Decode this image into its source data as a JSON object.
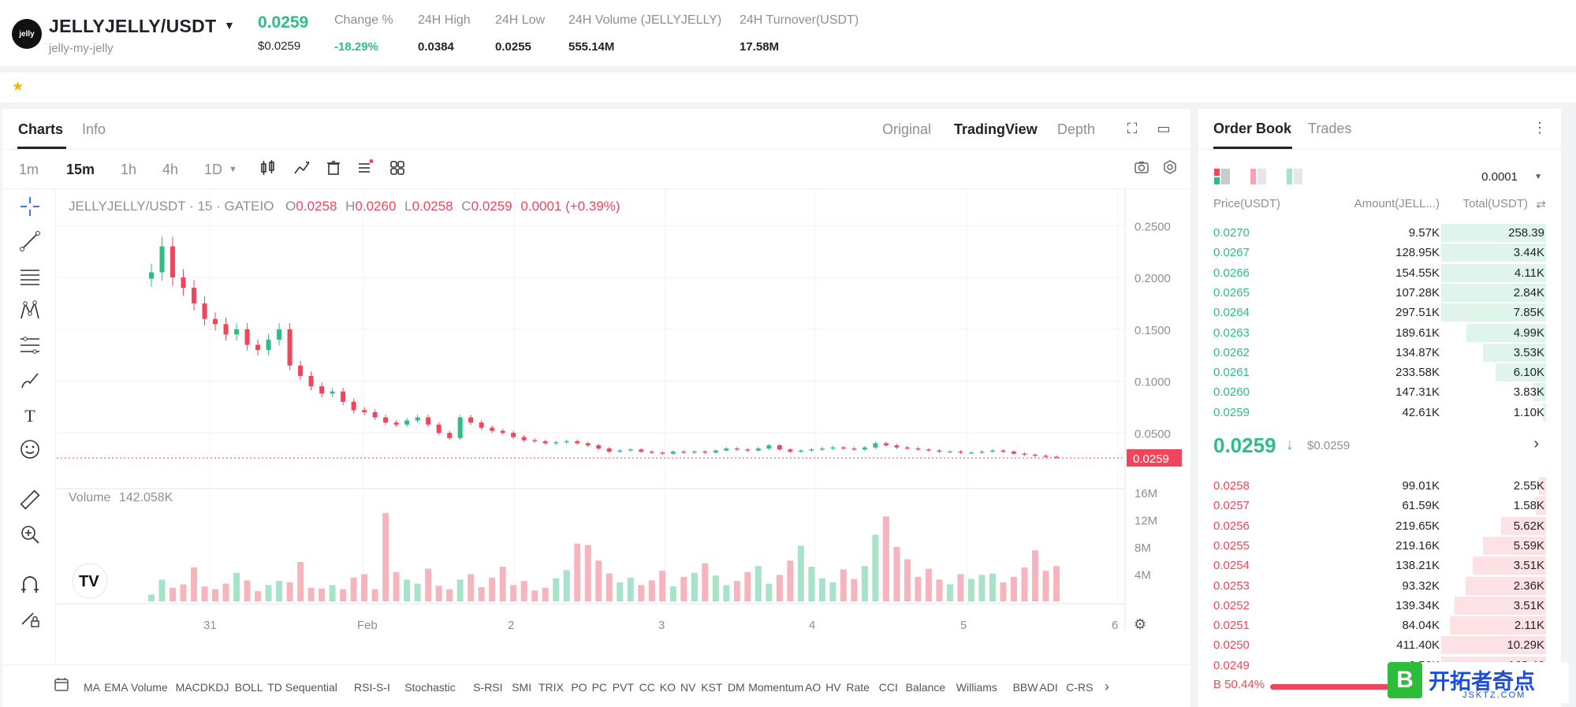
{
  "header": {
    "logo_text": "jelly",
    "pair": "JELLYJELLY/USDT",
    "caret": "▼",
    "subtitle": "jelly-my-jelly",
    "price": "0.0259",
    "price_usd": "$0.0259",
    "stats": [
      {
        "label": "Change %",
        "value": "-18.29%"
      },
      {
        "label": "24H High",
        "value": "0.0384"
      },
      {
        "label": "24H Low",
        "value": "0.0255"
      },
      {
        "label": "24H Volume (JELLYJELLY)",
        "value": "555.14M"
      },
      {
        "label": "24H Turnover(USDT)",
        "value": "17.58M"
      }
    ]
  },
  "favorites": {
    "star_icon": "star-icon"
  },
  "chart_tabs": {
    "charts": "Charts",
    "info": "Info",
    "original": "Original",
    "tradingview": "TradingView",
    "depth": "Depth"
  },
  "intervals": [
    "1m",
    "15m",
    "1h",
    "4h",
    "1D"
  ],
  "intervals_caret": "▼",
  "active_interval": "15m",
  "legend": {
    "symbol": "JELLYJELLY/USDT · 15 · GATEIO",
    "o_label": "O",
    "o": "0.0258",
    "h_label": "H",
    "h": "0.0260",
    "l_label": "L",
    "l": "0.0258",
    "c_label": "C",
    "c": "0.0259",
    "change": "0.0001 (+0.39%)",
    "volume_label": "Volume",
    "volume_value": "142.058K"
  },
  "chart_data": {
    "type": "candlestick",
    "price_axis": [
      "0.2500",
      "0.2000",
      "0.1500",
      "0.1000",
      "0.0500"
    ],
    "price_range": [
      0,
      0.27
    ],
    "current_price_label": "0.0259",
    "volume_axis": [
      "16M",
      "12M",
      "8M",
      "4M"
    ],
    "volume_range": [
      0,
      16000000
    ],
    "x_ticks": [
      "31",
      "Feb",
      "2",
      "3",
      "4",
      "5",
      "6"
    ],
    "series": [
      {
        "name": "",
        "close": [
          0.205,
          0.23,
          0.2,
          0.19,
          0.175,
          0.16,
          0.155,
          0.145,
          0.15,
          0.135,
          0.13,
          0.14,
          0.15,
          0.115,
          0.105,
          0.095,
          0.088,
          0.09,
          0.08,
          0.072,
          0.07,
          0.065,
          0.06,
          0.058,
          0.062,
          0.065,
          0.058,
          0.05,
          0.045,
          0.065,
          0.06,
          0.055,
          0.052,
          0.05,
          0.046,
          0.043,
          0.042,
          0.04,
          0.041,
          0.042,
          0.04,
          0.038,
          0.035,
          0.032,
          0.033,
          0.034,
          0.032,
          0.031,
          0.03,
          0.032,
          0.031,
          0.032,
          0.031,
          0.033,
          0.035,
          0.034,
          0.033,
          0.035,
          0.038,
          0.034,
          0.032,
          0.033,
          0.034,
          0.035,
          0.036,
          0.035,
          0.034,
          0.036,
          0.04,
          0.038,
          0.036,
          0.035,
          0.034,
          0.033,
          0.032,
          0.032,
          0.031,
          0.031,
          0.032,
          0.033,
          0.032,
          0.03,
          0.029,
          0.028,
          0.027,
          0.026
        ],
        "volume": [
          1000000,
          3200000,
          2000000,
          2500000,
          5000000,
          2200000,
          1800000,
          2600000,
          4200000,
          3100000,
          1500000,
          2400000,
          3000000,
          2800000,
          5800000,
          2000000,
          1900000,
          2400000,
          1800000,
          3500000,
          4000000,
          1800000,
          13000000,
          4300000,
          3200000,
          2600000,
          4800000,
          2300000,
          1800000,
          3200000,
          4000000,
          2100000,
          3500000,
          5100000,
          2400000,
          3000000,
          1600000,
          2000000,
          3400000,
          4600000,
          8500000,
          8300000,
          6000000,
          4100000,
          2800000,
          3500000,
          2400000,
          3100000,
          4500000,
          2200000,
          3600000,
          4200000,
          5600000,
          3800000,
          2400000,
          3000000,
          4300000,
          5200000,
          2600000,
          3900000,
          6000000,
          8200000,
          5100000,
          3400000,
          2800000,
          4700000,
          3300000,
          5200000,
          9800000,
          12500000,
          8000000,
          6200000,
          3600000,
          4800000,
          3200000,
          2500000,
          4000000,
          3300000,
          3900000,
          4100000,
          2800000,
          3600000,
          5000000,
          7500000,
          4500000,
          5200000
        ]
      }
    ]
  },
  "indicators": [
    "MA",
    "EMA",
    "Volume",
    "MACD",
    "KDJ",
    "BOLL",
    "TD Sequential",
    "RSI-S-I",
    "Stochastic",
    "S-RSI",
    "SMI",
    "TRIX",
    "PO",
    "PC",
    "PVT",
    "CC",
    "KO",
    "NV",
    "KST",
    "DM",
    "Momentum",
    "AO",
    "HV",
    "Rate",
    "CCI",
    "Balance",
    "Williams",
    "BBW",
    "ADI",
    "C-RS"
  ],
  "orderbook": {
    "tabs": [
      "Order Book",
      "Trades"
    ],
    "precision": "0.0001",
    "precision_caret": "▼",
    "headers": {
      "price": "Price(USDT)",
      "amount": "Amount(JELL...)",
      "total": "Total(USDT)"
    },
    "asks": [
      {
        "price": "0.0270",
        "amount": "9.57K",
        "total": "258.39",
        "depth": 1.0
      },
      {
        "price": "0.0267",
        "amount": "128.95K",
        "total": "3.44K",
        "depth": 1.0
      },
      {
        "price": "0.0266",
        "amount": "154.55K",
        "total": "4.11K",
        "depth": 1.0
      },
      {
        "price": "0.0265",
        "amount": "107.28K",
        "total": "2.84K",
        "depth": 1.0
      },
      {
        "price": "0.0264",
        "amount": "297.51K",
        "total": "7.85K",
        "depth": 1.0
      },
      {
        "price": "0.0263",
        "amount": "189.61K",
        "total": "4.99K",
        "depth": 0.76
      },
      {
        "price": "0.0262",
        "amount": "134.87K",
        "total": "3.53K",
        "depth": 0.6
      },
      {
        "price": "0.0261",
        "amount": "233.58K",
        "total": "6.10K",
        "depth": 0.48
      },
      {
        "price": "0.0260",
        "amount": "147.31K",
        "total": "3.83K",
        "depth": 0.12
      },
      {
        "price": "0.0259",
        "amount": "42.61K",
        "total": "1.10K",
        "depth": 0.03
      }
    ],
    "last_price": "0.0259",
    "last_arrow": "↓",
    "last_usd": "$0.0259",
    "last_chevron": "›",
    "bids": [
      {
        "price": "0.0258",
        "amount": "99.01K",
        "total": "2.55K",
        "depth": 0.07
      },
      {
        "price": "0.0257",
        "amount": "61.59K",
        "total": "1.58K",
        "depth": 0.1
      },
      {
        "price": "0.0256",
        "amount": "219.65K",
        "total": "5.62K",
        "depth": 0.43
      },
      {
        "price": "0.0255",
        "amount": "219.16K",
        "total": "5.59K",
        "depth": 0.6
      },
      {
        "price": "0.0254",
        "amount": "138.21K",
        "total": "3.51K",
        "depth": 0.7
      },
      {
        "price": "0.0253",
        "amount": "93.32K",
        "total": "2.36K",
        "depth": 0.77
      },
      {
        "price": "0.0252",
        "amount": "139.34K",
        "total": "3.51K",
        "depth": 0.87
      },
      {
        "price": "0.0251",
        "amount": "84.04K",
        "total": "2.11K",
        "depth": 0.92
      },
      {
        "price": "0.0250",
        "amount": "411.40K",
        "total": "10.29K",
        "depth": 1.0
      },
      {
        "price": "0.0249",
        "amount": "6.56K",
        "total": "163.46",
        "depth": 1.0
      }
    ],
    "buy_ratio": "B 50.44%"
  },
  "watermark": {
    "box": "B",
    "title": "开拓者奇点",
    "site": "JSKTZ.COM"
  },
  "colors": {
    "up": "#2ebd85",
    "down": "#f0455a",
    "accent": "#1f2329"
  }
}
